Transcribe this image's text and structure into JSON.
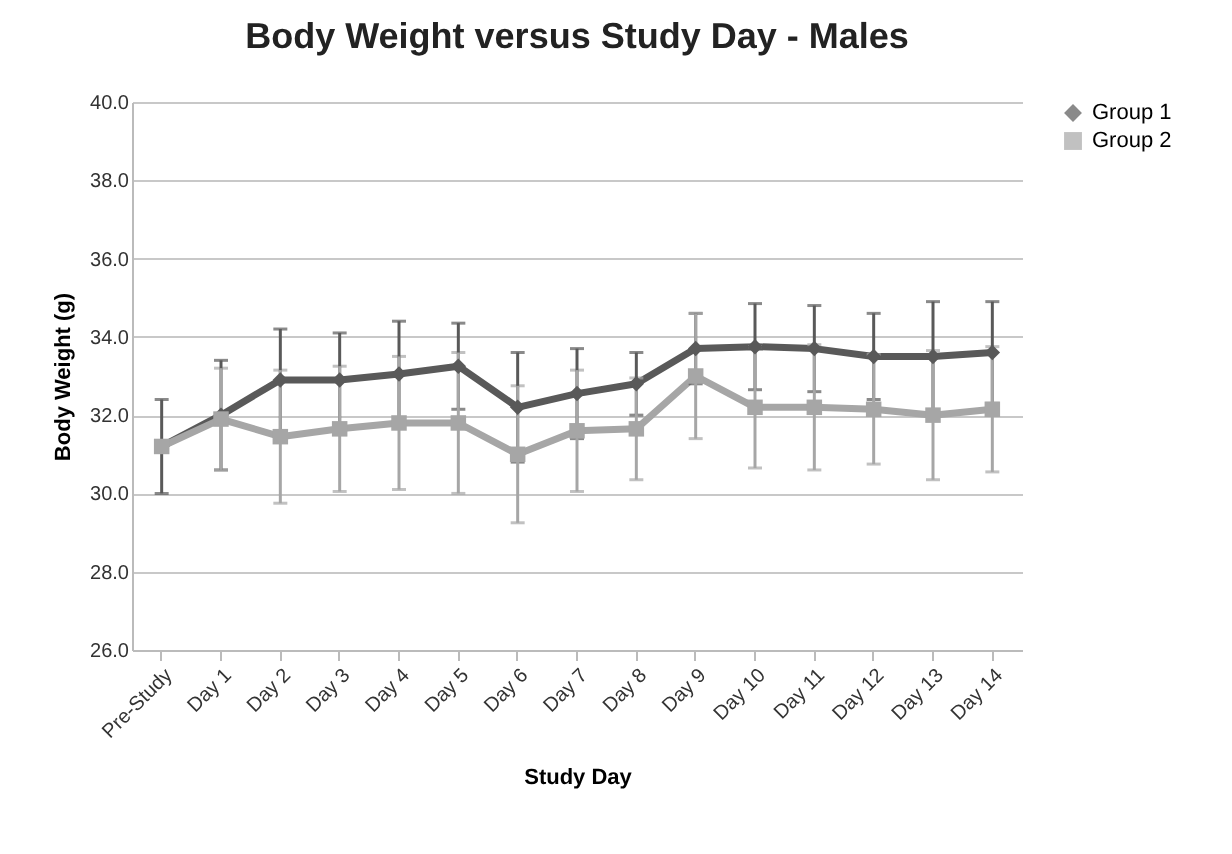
{
  "chart_data": {
    "type": "line",
    "title": "Body Weight versus Study Day - Males",
    "xlabel": "Study Day",
    "ylabel": "Body Weight (g)",
    "categories": [
      "Pre-Study",
      "Day 1",
      "Day 2",
      "Day 3",
      "Day 4",
      "Day 5",
      "Day 6",
      "Day 7",
      "Day 8",
      "Day 9",
      "Day 10",
      "Day 11",
      "Day 12",
      "Day 13",
      "Day 14"
    ],
    "series": [
      {
        "name": "Group 1",
        "color": "#595959",
        "marker": "diamond",
        "values": [
          31.2,
          32.0,
          32.9,
          32.9,
          33.05,
          33.25,
          32.2,
          32.55,
          32.8,
          33.7,
          33.75,
          33.7,
          33.5,
          33.5,
          33.6
        ],
        "errors": [
          1.2,
          1.4,
          1.3,
          1.2,
          1.35,
          1.1,
          1.4,
          1.15,
          0.8,
          0.9,
          1.1,
          1.1,
          1.1,
          1.4,
          1.3
        ]
      },
      {
        "name": "Group 2",
        "color": "#a6a6a6",
        "marker": "square",
        "values": [
          31.2,
          31.9,
          31.45,
          31.65,
          31.8,
          31.8,
          31.0,
          31.6,
          31.65,
          33.0,
          32.2,
          32.2,
          32.15,
          32.0,
          32.15
        ],
        "errors": [
          null,
          1.3,
          1.7,
          1.6,
          1.7,
          1.8,
          1.75,
          1.55,
          1.3,
          1.6,
          1.55,
          1.6,
          1.4,
          1.65,
          1.6
        ]
      }
    ],
    "ylim": [
      26,
      40
    ],
    "yticks": [
      {
        "value": 26,
        "label": "26.0"
      },
      {
        "value": 28,
        "label": "28.0"
      },
      {
        "value": 30,
        "label": "30.0"
      },
      {
        "value": 32,
        "label": "32.0"
      },
      {
        "value": 34,
        "label": "34.0"
      },
      {
        "value": 36,
        "label": "36.0"
      },
      {
        "value": 38,
        "label": "38.0"
      },
      {
        "value": 40,
        "label": "40.0"
      }
    ],
    "grid": "y",
    "legend": "right"
  }
}
